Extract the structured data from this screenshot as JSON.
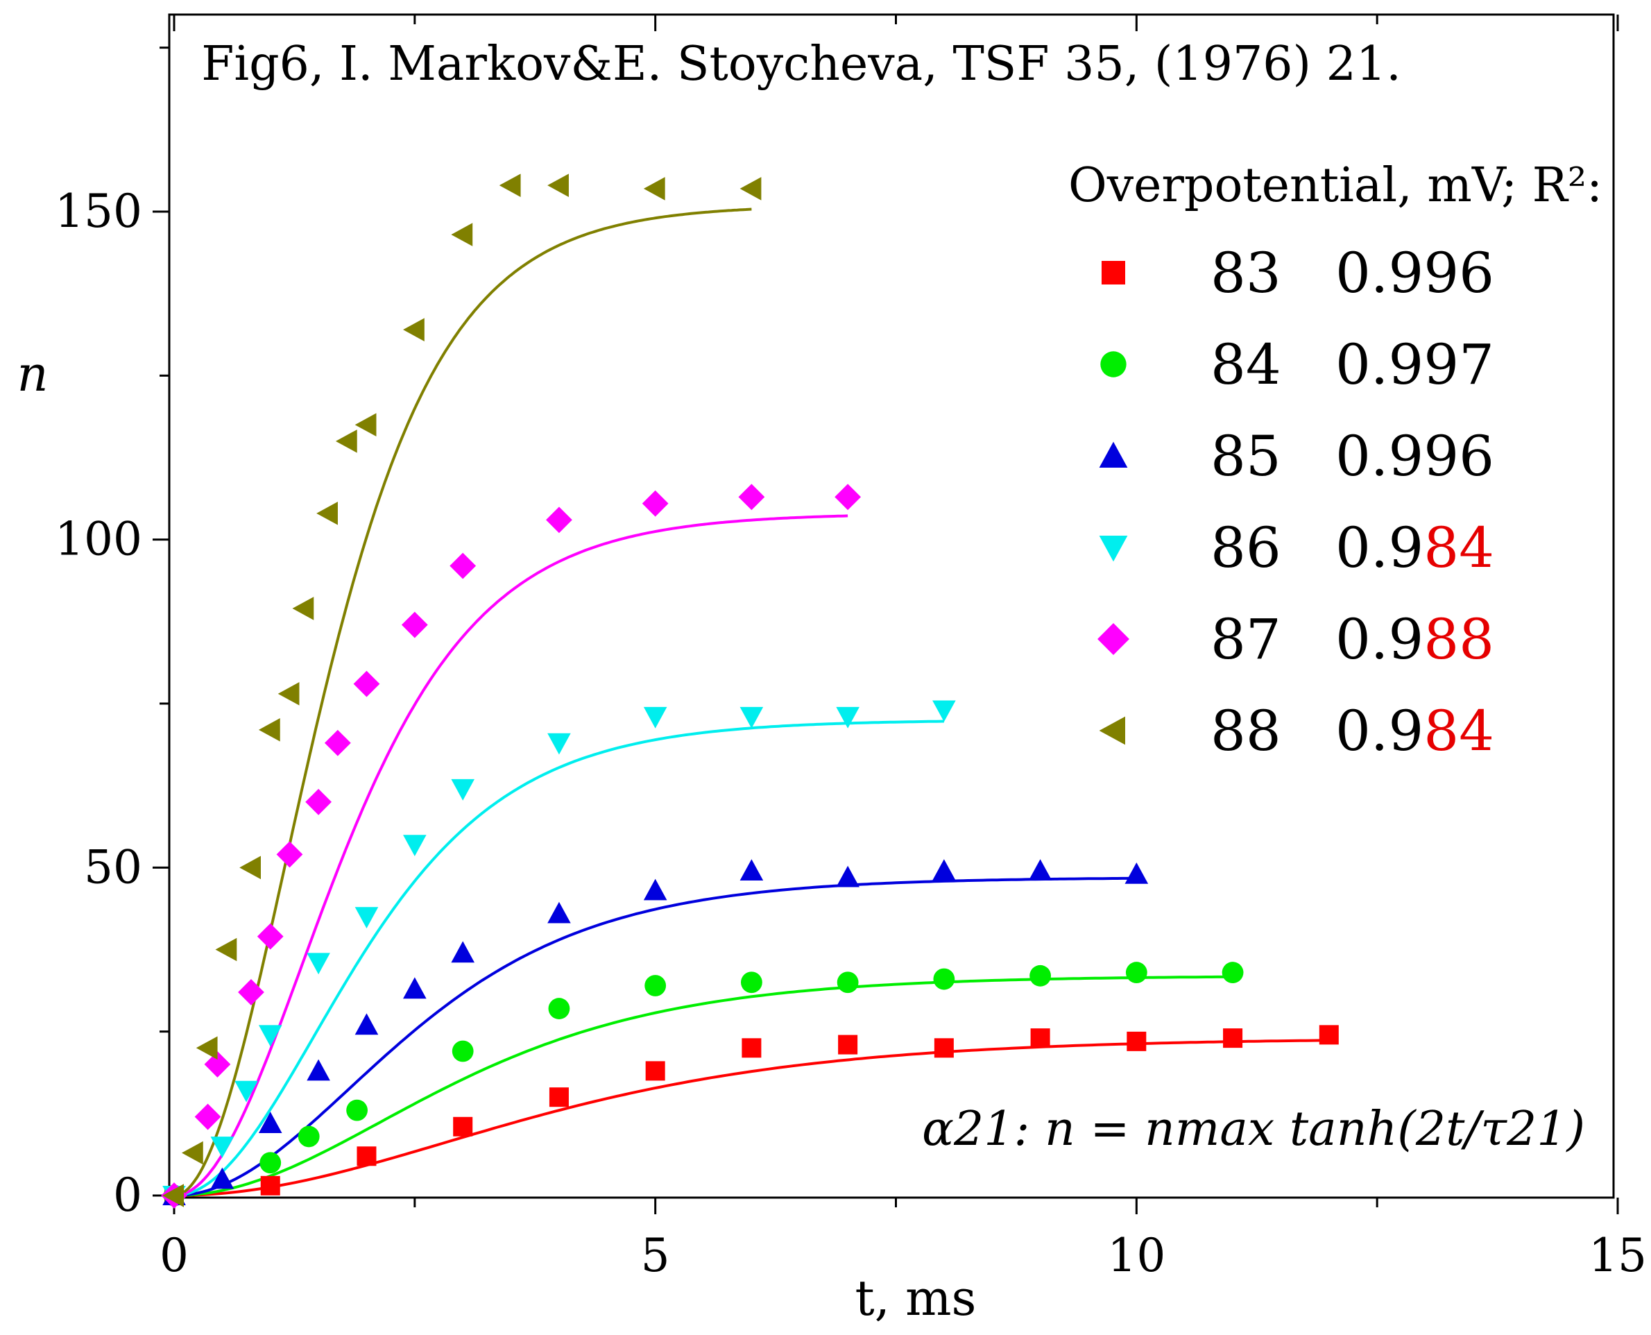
{
  "chart_data": {
    "type": "scatter",
    "title": "Fig6,  I. Markov&E. Stoycheva, TSF 35, (1976) 21.",
    "xlabel": "t, ms",
    "ylabel": "n",
    "xlim": [
      0,
      15
    ],
    "ylim": [
      0,
      175
    ],
    "x_ticks": [
      "0",
      "5",
      "10",
      "15"
    ],
    "y_ticks": [
      "0",
      "50",
      "100",
      "150"
    ],
    "legend_title": "Overpotential, mV; R²:",
    "legend_placement": "right",
    "grid": false,
    "formula": "α21: n = nmax tanh(2t/τ21)",
    "series": [
      {
        "name": "83",
        "r2": "0.996",
        "r2_prefix": "0.996",
        "r2_suffix": "",
        "r2_suffix_red": false,
        "marker": "square",
        "color": "#ff0000",
        "x": [
          0,
          1,
          2,
          3,
          4,
          5,
          6,
          7,
          8,
          9,
          10,
          11,
          12
        ],
        "y": [
          0,
          1.5,
          6,
          10.5,
          15,
          19,
          22.5,
          23,
          22.5,
          24,
          23.5,
          24,
          24.5
        ],
        "fit": {
          "nmax": 24,
          "tau": 8.5
        }
      },
      {
        "name": "84",
        "r2": "0.997",
        "r2_prefix": "0.997",
        "r2_suffix": "",
        "r2_suffix_red": false,
        "marker": "circle",
        "color": "#00ee00",
        "x": [
          0,
          1,
          1.4,
          1.9,
          3,
          4,
          5,
          6,
          7,
          8,
          9,
          10,
          11
        ],
        "y": [
          0,
          5,
          9,
          13,
          22,
          28.5,
          32,
          32.5,
          32.5,
          33,
          33.5,
          34,
          34
        ],
        "fit": {
          "nmax": 33.5,
          "tau": 6.5
        }
      },
      {
        "name": "85",
        "r2": "0.996",
        "r2_prefix": "0.996",
        "r2_suffix": "",
        "r2_suffix_red": false,
        "marker": "triangle-up",
        "color": "#0000dd",
        "x": [
          0,
          0.5,
          1,
          1.5,
          2,
          2.5,
          3,
          4,
          5,
          6,
          7,
          8,
          9,
          10
        ],
        "y": [
          0,
          2.5,
          11,
          19,
          26,
          31.5,
          37,
          43,
          46.5,
          49.5,
          48.5,
          49.5,
          49.5,
          49
        ],
        "fit": {
          "nmax": 48.5,
          "tau": 5.5
        }
      },
      {
        "name": "86",
        "r2": "0.984",
        "r2_prefix": "0.9",
        "r2_suffix": "84",
        "r2_suffix_red": true,
        "marker": "triangle-down",
        "color": "#00eeee",
        "x": [
          0,
          0.5,
          0.75,
          1,
          1.5,
          2,
          2.5,
          3,
          4,
          5,
          6,
          7,
          8
        ],
        "y": [
          0,
          7.5,
          16,
          24.5,
          35.5,
          42.5,
          53.5,
          62,
          69,
          73,
          73,
          73,
          74
        ],
        "fit": {
          "nmax": 72.5,
          "tau": 4.4
        }
      },
      {
        "name": "87",
        "r2": "0.988",
        "r2_prefix": "0.9",
        "r2_suffix": "88",
        "r2_suffix_red": true,
        "marker": "diamond",
        "color": "#ff00ff",
        "x": [
          0,
          0.35,
          0.45,
          0.8,
          1,
          1.2,
          1.5,
          1.7,
          2,
          2.5,
          3,
          4,
          5,
          6,
          7
        ],
        "y": [
          0,
          12,
          20,
          31,
          39.5,
          52,
          60,
          69,
          78,
          87,
          96,
          103,
          105.5,
          106.5,
          106.5
        ],
        "fit": {
          "nmax": 104,
          "tau": 4.0
        }
      },
      {
        "name": "88",
        "r2": "0.984",
        "r2_prefix": "0.9",
        "r2_suffix": "84",
        "r2_suffix_red": true,
        "marker": "triangle-left",
        "color": "#808000",
        "x": [
          0,
          0.2,
          0.35,
          0.55,
          0.8,
          1,
          1.2,
          1.35,
          1.6,
          1.8,
          2,
          2.5,
          3,
          3.5,
          4,
          5,
          6
        ],
        "y": [
          0,
          6.5,
          22.5,
          37.5,
          50,
          71,
          76.5,
          89.5,
          104,
          115,
          117.5,
          132,
          146.5,
          154,
          154,
          153.5,
          153.5
        ],
        "fit": {
          "nmax": 151,
          "tau": 3.5
        }
      }
    ]
  }
}
